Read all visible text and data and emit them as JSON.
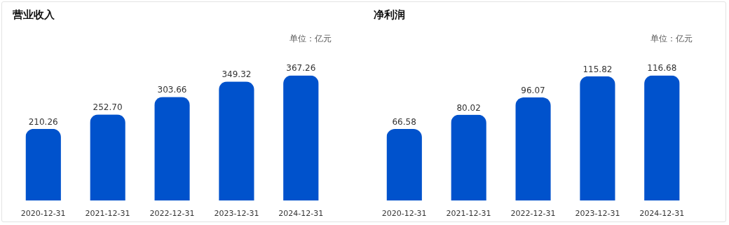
{
  "chart_data": [
    {
      "type": "bar",
      "title": "营业收入",
      "annotations": [
        "单位：亿元"
      ],
      "categories": [
        "2020-12-31",
        "2021-12-31",
        "2022-12-31",
        "2023-12-31",
        "2024-12-31"
      ],
      "series": [
        {
          "color": "#0052cc",
          "values": [
            210.26,
            252.7,
            303.66,
            349.32,
            367.26
          ],
          "value_labels": [
            "210.26",
            "252.70",
            "303.66",
            "349.32",
            "367.26"
          ]
        }
      ],
      "tick_labels": "x"
    },
    {
      "type": "bar",
      "title": "净利润",
      "annotations": [
        "单位：亿元"
      ],
      "categories": [
        "2020-12-31",
        "2021-12-31",
        "2022-12-31",
        "2023-12-31",
        "2024-12-31"
      ],
      "series": [
        {
          "color": "#0052cc",
          "values": [
            66.58,
            80.02,
            96.07,
            115.82,
            116.68
          ],
          "value_labels": [
            "66.58",
            "80.02",
            "96.07",
            "115.82",
            "116.68"
          ]
        }
      ],
      "tick_labels": "x"
    }
  ]
}
